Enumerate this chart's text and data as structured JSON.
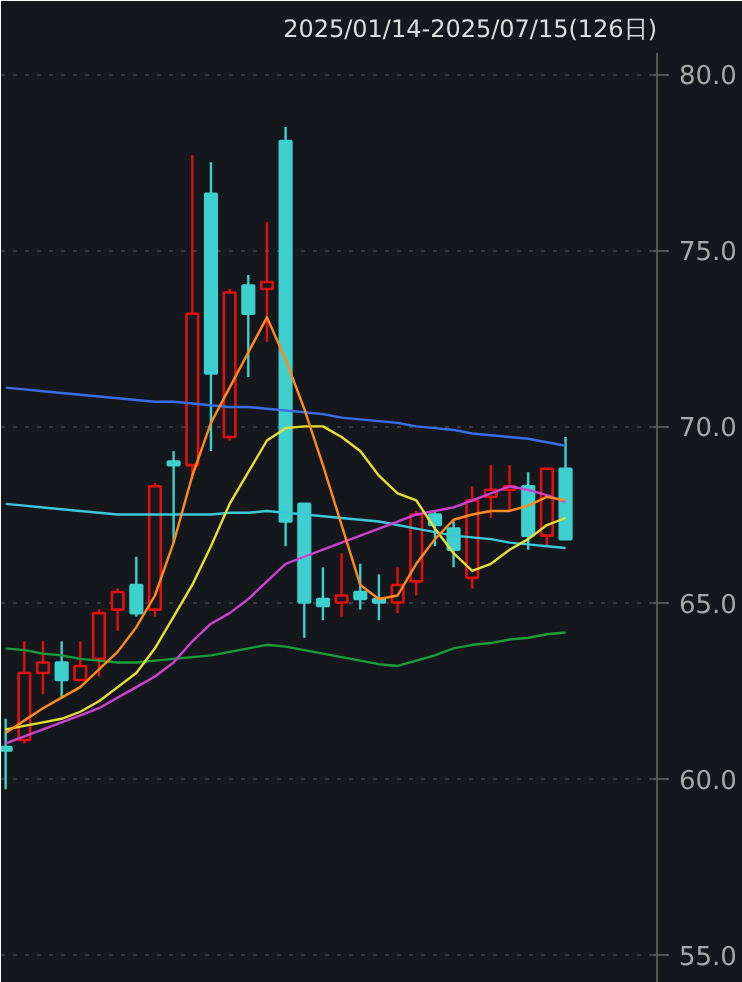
{
  "chart_data": {
    "type": "candlestick",
    "title": "2025/01/14-2025/07/15(126日)",
    "categories": [
      null,
      null,
      null,
      null,
      null,
      null,
      null,
      null,
      null,
      null,
      null,
      null,
      null,
      null,
      null,
      null,
      null,
      null,
      null,
      null,
      null,
      null,
      null,
      null,
      null,
      null,
      null,
      null,
      null,
      null,
      null
    ],
    "ohlc": [
      [
        60.9,
        61.7,
        59.7,
        60.8
      ],
      [
        61.1,
        63.9,
        61.0,
        63.0
      ],
      [
        63.0,
        63.9,
        62.4,
        63.3
      ],
      [
        63.3,
        63.9,
        62.3,
        62.8
      ],
      [
        62.8,
        63.9,
        62.8,
        63.2
      ],
      [
        63.4,
        64.8,
        62.9,
        64.7
      ],
      [
        64.8,
        65.4,
        64.2,
        65.3
      ],
      [
        65.5,
        66.3,
        64.6,
        64.7
      ],
      [
        64.8,
        68.4,
        64.6,
        68.3
      ],
      [
        69.0,
        69.3,
        66.7,
        68.9
      ],
      [
        68.9,
        77.7,
        68.5,
        73.2
      ],
      [
        76.6,
        77.5,
        69.3,
        71.5
      ],
      [
        69.7,
        73.9,
        69.6,
        73.8
      ],
      [
        74.0,
        74.3,
        71.4,
        73.2
      ],
      [
        73.9,
        75.8,
        72.4,
        74.1
      ],
      [
        78.1,
        78.5,
        66.6,
        67.3
      ],
      [
        67.8,
        67.8,
        64.0,
        65.0
      ],
      [
        65.1,
        66.0,
        64.5,
        64.9
      ],
      [
        65.0,
        66.4,
        64.6,
        65.2
      ],
      [
        65.3,
        66.1,
        64.8,
        65.1
      ],
      [
        65.1,
        65.8,
        64.5,
        65.0
      ],
      [
        65.0,
        66.0,
        64.7,
        65.5
      ],
      [
        65.6,
        67.6,
        65.2,
        67.5
      ],
      [
        67.5,
        67.6,
        66.6,
        67.2
      ],
      [
        67.1,
        67.3,
        66.0,
        66.5
      ],
      [
        65.7,
        68.3,
        65.4,
        67.9
      ],
      [
        68.0,
        68.9,
        67.4,
        68.2
      ],
      [
        68.2,
        68.9,
        67.6,
        68.3
      ],
      [
        68.3,
        68.7,
        66.5,
        66.9
      ],
      [
        66.9,
        68.8,
        66.6,
        68.8
      ],
      [
        68.8,
        69.7,
        66.8,
        66.8
      ]
    ],
    "colors": [
      "#3ecfcf",
      "#e01010",
      "#e01010",
      "#3ecfcf",
      "#e01010",
      "#e01010",
      "#e01010",
      "#3ecfcf",
      "#e01010",
      "#3ecfcf",
      "#e01010",
      "#3ecfcf",
      "#e01010",
      "#3ecfcf",
      "#e01010",
      "#3ecfcf",
      "#3ecfcf",
      "#3ecfcf",
      "#e01010",
      "#3ecfcf",
      "#3ecfcf",
      "#e01010",
      "#e01010",
      "#3ecfcf",
      "#3ecfcf",
      "#e01010",
      "#e01010",
      "#e01010",
      "#3ecfcf",
      "#e01010",
      "#3ecfcf"
    ],
    "series": [
      {
        "type": "line",
        "color": "#3a6ee8",
        "values": [
          71.1,
          71.05,
          71.0,
          70.95,
          70.9,
          70.85,
          70.8,
          70.75,
          70.7,
          70.7,
          70.65,
          70.6,
          70.55,
          70.55,
          70.5,
          70.45,
          70.4,
          70.35,
          70.25,
          70.2,
          70.15,
          70.1,
          70.0,
          69.95,
          69.9,
          69.8,
          69.75,
          69.7,
          69.65,
          69.55,
          69.45
        ]
      },
      {
        "type": "line",
        "color": "#3cc8d8",
        "values": [
          67.8,
          67.75,
          67.7,
          67.65,
          67.6,
          67.55,
          67.5,
          67.5,
          67.5,
          67.5,
          67.5,
          67.5,
          67.55,
          67.55,
          67.6,
          67.55,
          67.5,
          67.45,
          67.4,
          67.35,
          67.3,
          67.2,
          67.1,
          67.0,
          66.9,
          66.85,
          66.8,
          66.7,
          66.65,
          66.6,
          66.55
        ]
      },
      {
        "type": "line",
        "color": "#1a9e3a",
        "values": [
          63.7,
          63.65,
          63.55,
          63.5,
          63.4,
          63.35,
          63.3,
          63.3,
          63.35,
          63.4,
          63.45,
          63.5,
          63.6,
          63.7,
          63.8,
          63.75,
          63.65,
          63.55,
          63.45,
          63.35,
          63.25,
          63.2,
          63.35,
          63.5,
          63.7,
          63.8,
          63.85,
          63.95,
          64.0,
          64.1,
          64.15
        ]
      },
      {
        "type": "line",
        "color": "#d040d0",
        "values": [
          61.0,
          61.2,
          61.4,
          61.6,
          61.8,
          62.0,
          62.3,
          62.6,
          62.9,
          63.3,
          63.9,
          64.4,
          64.7,
          65.1,
          65.6,
          66.1,
          66.3,
          66.5,
          66.7,
          66.9,
          67.1,
          67.3,
          67.5,
          67.6,
          67.7,
          67.9,
          68.1,
          68.3,
          68.2,
          68.05,
          67.85
        ]
      },
      {
        "type": "line",
        "color": "#e8e030",
        "values": [
          61.4,
          61.5,
          61.6,
          61.7,
          61.9,
          62.2,
          62.6,
          63.0,
          63.7,
          64.6,
          65.5,
          66.6,
          67.8,
          68.7,
          69.6,
          69.95,
          70.0,
          70.0,
          69.7,
          69.3,
          68.6,
          68.1,
          67.9,
          67.1,
          66.4,
          65.9,
          66.1,
          66.5,
          66.8,
          67.2,
          67.4
        ]
      },
      {
        "type": "line",
        "color": "#ff8c1a",
        "values": [
          61.3,
          61.65,
          62.0,
          62.3,
          62.6,
          63.1,
          63.6,
          64.3,
          65.2,
          66.7,
          68.6,
          70.1,
          71.1,
          72.1,
          73.1,
          71.9,
          70.5,
          68.9,
          67.2,
          65.5,
          65.1,
          65.2,
          66.1,
          66.8,
          67.35,
          67.5,
          67.6,
          67.6,
          67.75,
          68.0,
          67.9
        ]
      }
    ],
    "ylim": [
      54.2,
      80.6
    ],
    "yticks": [
      {
        "value": 55,
        "label": "55.0"
      },
      {
        "value": 60,
        "label": "60.0"
      },
      {
        "value": 65,
        "label": "65.0"
      },
      {
        "value": 70,
        "label": "70.0"
      },
      {
        "value": 75,
        "label": "75.0"
      },
      {
        "value": 80,
        "label": "80.0"
      }
    ],
    "grid": "y",
    "tick_labels": "y"
  }
}
